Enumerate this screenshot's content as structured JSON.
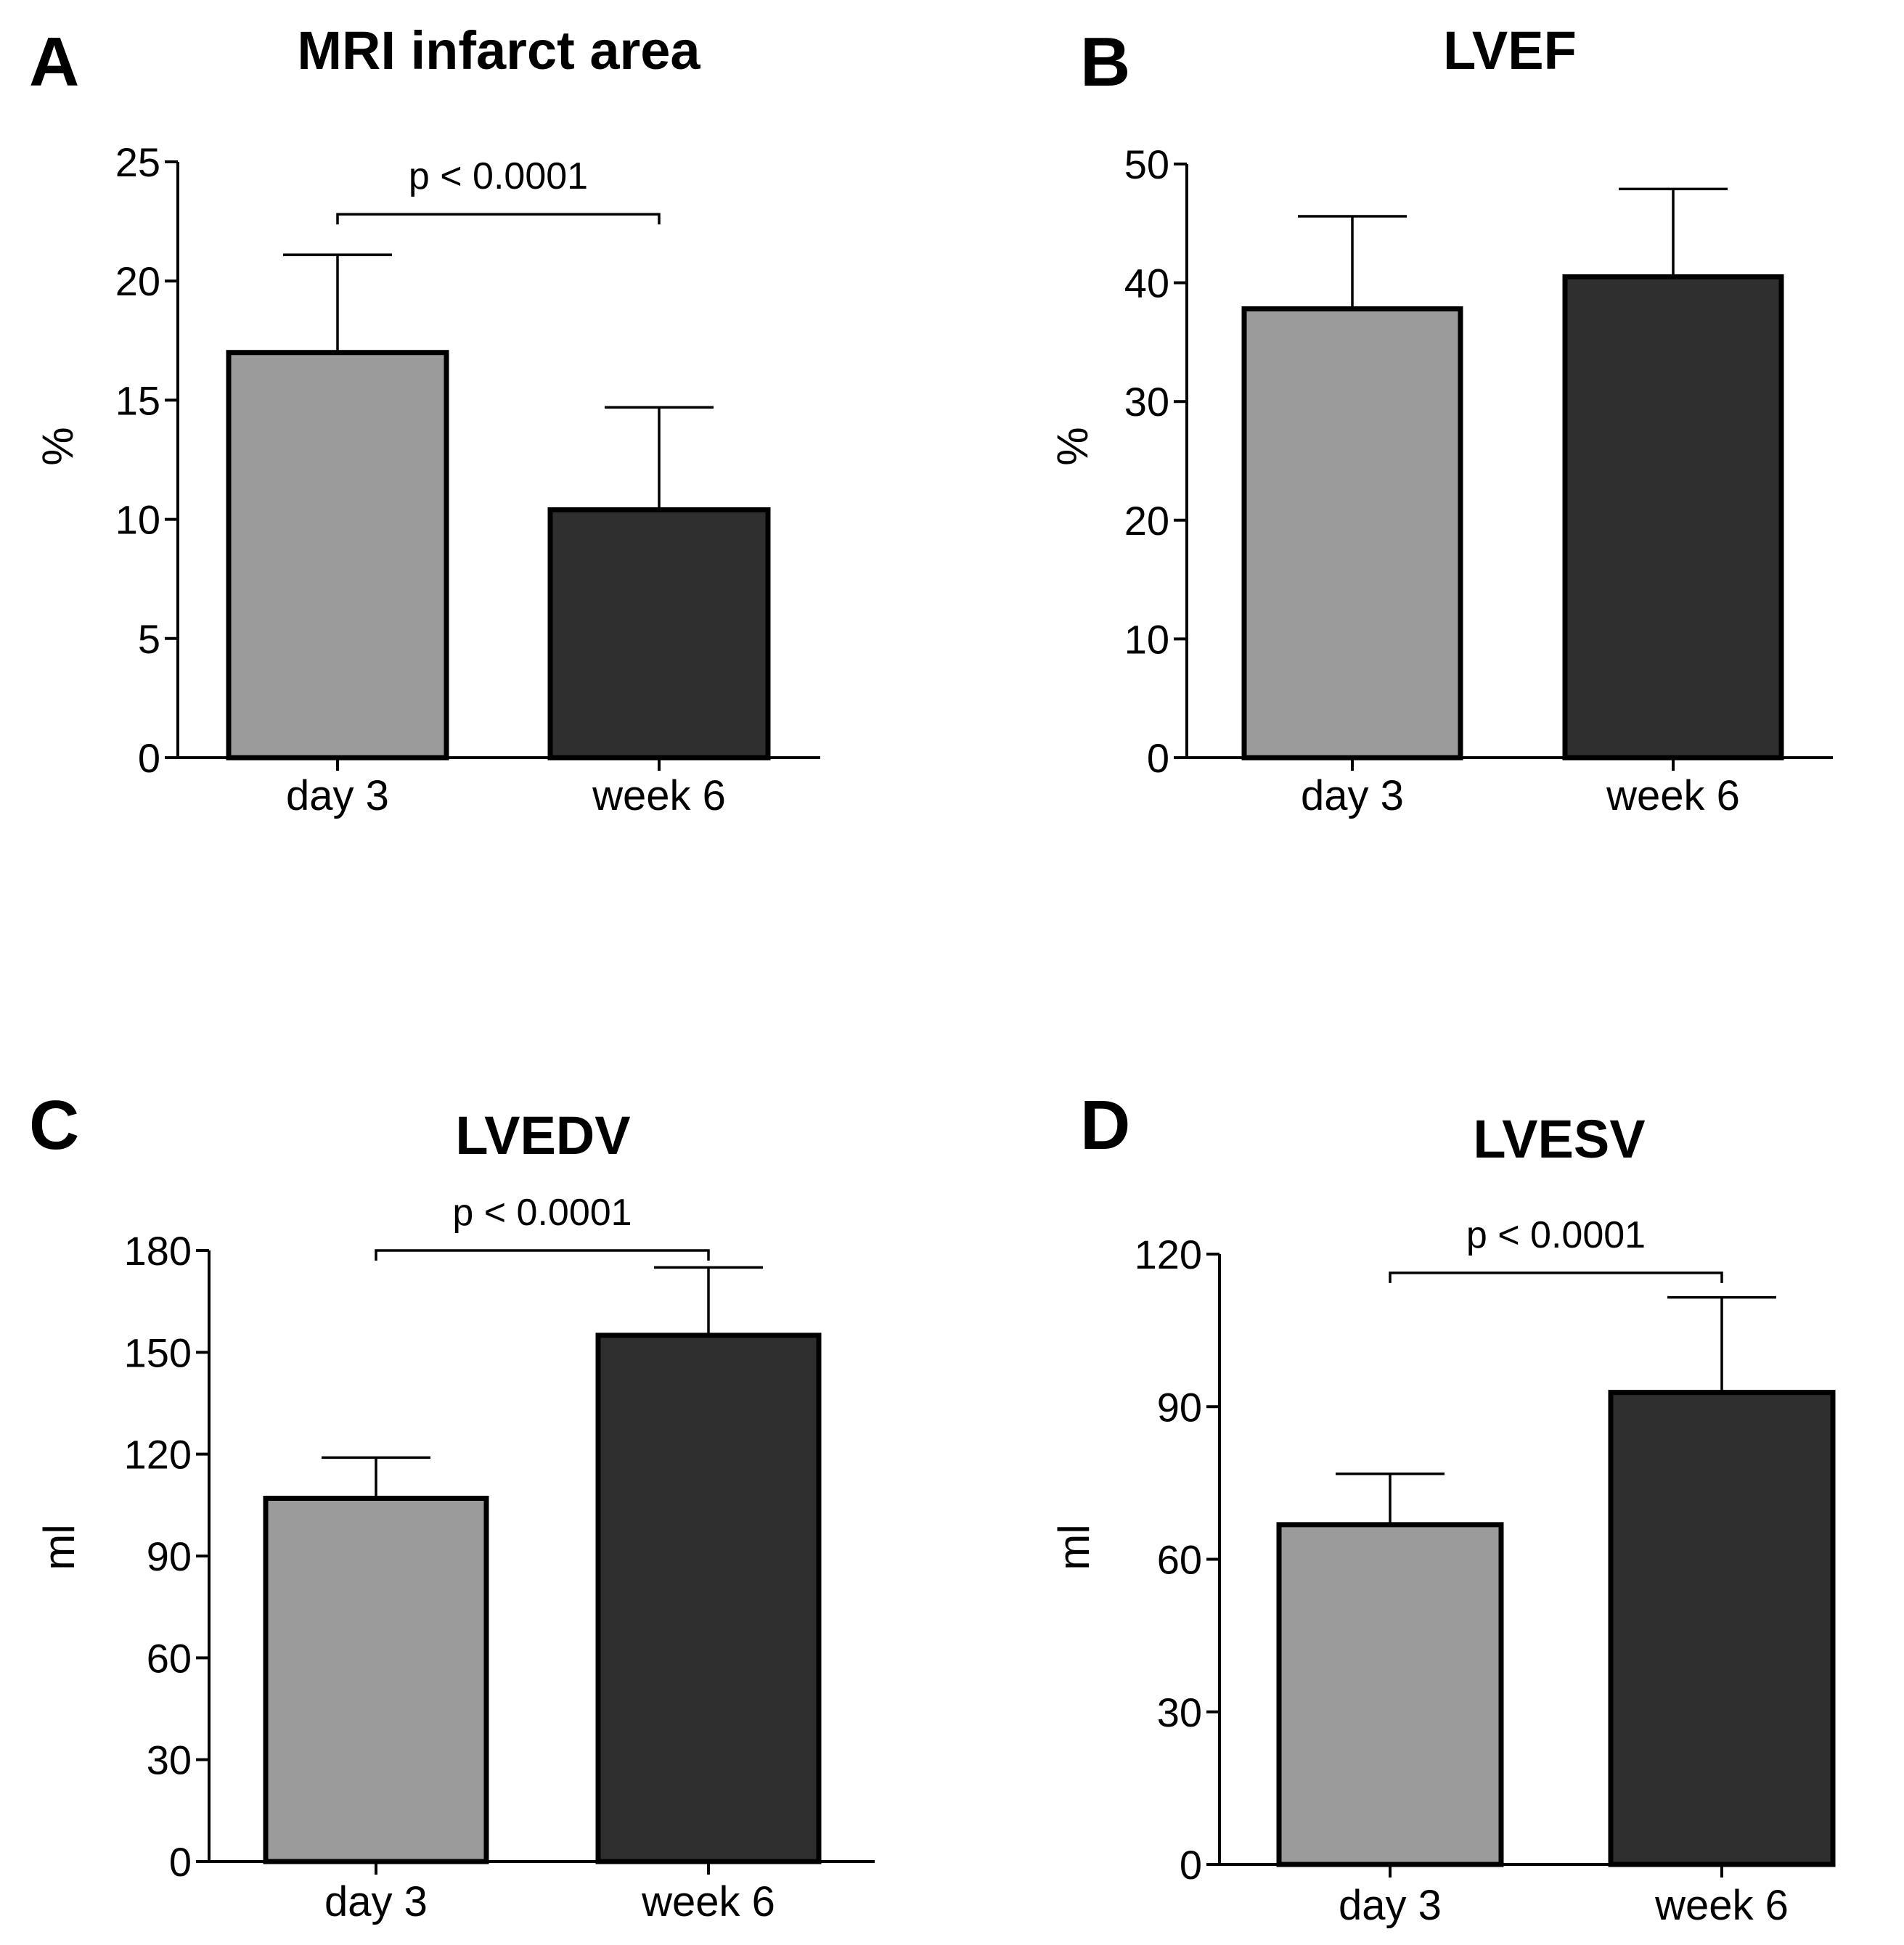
{
  "colors": {
    "day3_fill": "#9b9b9b",
    "week6_fill": "#2f2f2f",
    "axis": "#000000",
    "background": "#ffffff"
  },
  "chart_data": [
    {
      "panel": "A",
      "type": "bar",
      "title": "MRI infarct area",
      "ylabel": "%",
      "xlabel": "",
      "categories": [
        "day 3",
        "week 6"
      ],
      "values": [
        17,
        10.4
      ],
      "error_upper": [
        21.1,
        14.7
      ],
      "ylim": [
        0,
        25
      ],
      "yticks": [
        0,
        5,
        10,
        15,
        20,
        25
      ],
      "significance": {
        "label": "p < 0.0001",
        "from": 0,
        "to": 1,
        "y": 22.8
      }
    },
    {
      "panel": "B",
      "type": "bar",
      "title": "LVEF",
      "ylabel": "%",
      "xlabel": "",
      "categories": [
        "day 3",
        "week 6"
      ],
      "values": [
        37.8,
        40.5
      ],
      "error_upper": [
        45.6,
        47.9
      ],
      "ylim": [
        0,
        50
      ],
      "yticks": [
        0,
        10,
        20,
        30,
        40,
        50
      ],
      "significance": null
    },
    {
      "panel": "C",
      "type": "bar",
      "title": "LVEDV",
      "ylabel": "ml",
      "xlabel": "",
      "categories": [
        "day 3",
        "week 6"
      ],
      "values": [
        107,
        155
      ],
      "error_upper": [
        119,
        175
      ],
      "ylim": [
        0,
        180
      ],
      "yticks": [
        0,
        30,
        60,
        90,
        120,
        150,
        180
      ],
      "significance": {
        "label": "p < 0.0001",
        "from": 0,
        "to": 1,
        "y": 180
      }
    },
    {
      "panel": "D",
      "type": "bar",
      "title": "LVESV",
      "ylabel": "ml",
      "xlabel": "",
      "categories": [
        "day 3",
        "week 6"
      ],
      "values": [
        66.8,
        92.8
      ],
      "error_upper": [
        76.8,
        111.5
      ],
      "ylim": [
        0,
        120
      ],
      "yticks": [
        0,
        30,
        60,
        90,
        120
      ],
      "significance": {
        "label": "p < 0.0001",
        "from": 0,
        "to": 1,
        "y": 116.3
      }
    }
  ]
}
